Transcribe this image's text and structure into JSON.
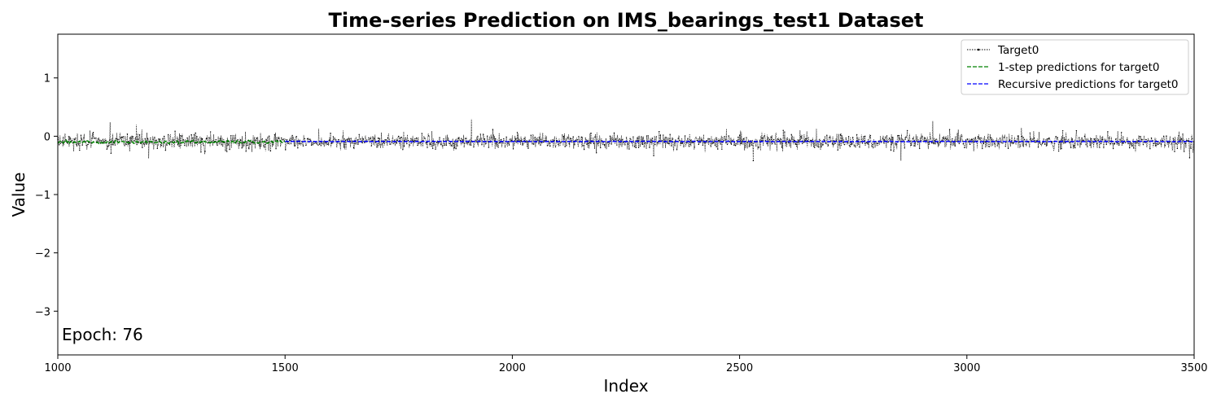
{
  "chart_data": {
    "type": "line",
    "title": "Time-series Prediction on IMS_bearings_test1 Dataset",
    "xlabel": "Index",
    "ylabel": "Value",
    "xlim": [
      1000,
      3500
    ],
    "ylim": [
      -3.75,
      1.75
    ],
    "xticks": [
      1000,
      1500,
      2000,
      2500,
      3000,
      3500
    ],
    "xtick_labels": [
      "1000",
      "1500",
      "2000",
      "2500",
      "3000",
      "3500"
    ],
    "yticks": [
      1,
      0,
      -1,
      -2,
      -3
    ],
    "ytick_labels": [
      "1",
      "0",
      "−1",
      "−2",
      "−3"
    ],
    "annotation": "Epoch: 76",
    "grid": false,
    "legend_position": "top-right",
    "series": [
      {
        "name": "Target0",
        "color": "#000000",
        "style": "dotted-with-markers",
        "x_range": [
          1000,
          3500
        ],
        "approx_mean": -0.09,
        "approx_std": 0.065,
        "notable_peaks": [
          [
            1115,
            0.24
          ],
          [
            1910,
            0.29
          ],
          [
            2925,
            0.26
          ]
        ],
        "notable_troughs": [
          [
            1200,
            -0.38
          ],
          [
            2530,
            -0.42
          ],
          [
            2855,
            -0.42
          ],
          [
            3490,
            -0.37
          ]
        ]
      },
      {
        "name": "1-step predictions for target0",
        "color": "#008000",
        "style": "dashed",
        "x_range": [
          1000,
          1500
        ],
        "approx_mean": -0.1
      },
      {
        "name": "Recursive predictions for target0",
        "color": "#0000ff",
        "style": "dashed",
        "x_range": [
          1500,
          3500
        ],
        "approx_mean": -0.09
      }
    ]
  }
}
